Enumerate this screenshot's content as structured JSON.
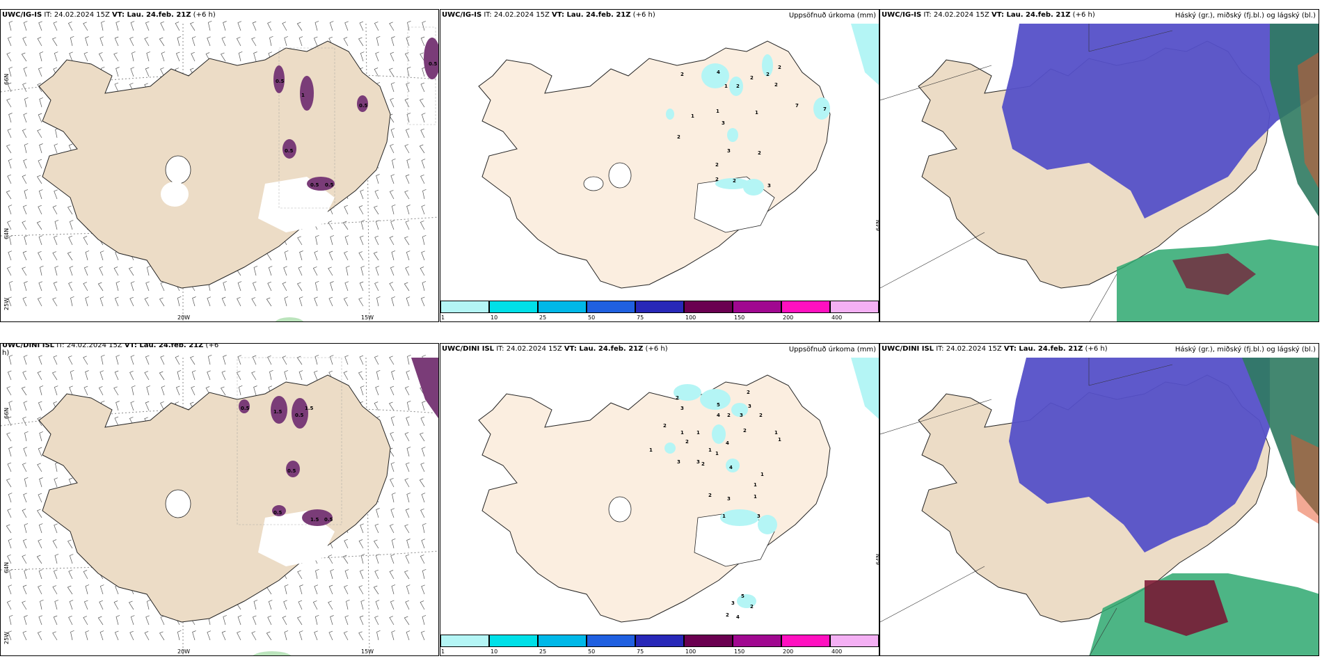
{
  "panels": {
    "top_left": {
      "model": "UWC/IG-IS",
      "it": " IT: 24.02.2024 15Z ",
      "vt": "VT: Lau. 24.feb. 21Z",
      "lead": " (+6 h)"
    },
    "top_mid": {
      "model": "UWC/IG-IS",
      "it": " IT: 24.02.2024 15Z ",
      "vt": "VT: Lau. 24.feb. 21Z",
      "lead": " (+6 h)",
      "right": "Uppsöfnuð úrkoma (mm)"
    },
    "top_right": {
      "model": "UWC/IG-IS",
      "it": " IT: 24.02.2024 15Z ",
      "vt": "VT: Lau. 24.feb. 21Z",
      "lead": " (+6 h)",
      "right": "Háský (gr.), miðský (fj.bl.) og lágský (bl.)"
    },
    "bot_left": {
      "model": "UWC/DINI ISL",
      "it": " IT: 24.02.2024 15Z ",
      "vt": "VT: Lau. 24.feb. 21Z",
      "lead": " (+6",
      "wrap": "h)"
    },
    "bot_mid": {
      "model": "UWC/DINI ISL",
      "it": " IT: 24.02.2024 15Z ",
      "vt": "VT: Lau. 24.feb. 21Z",
      "lead": " (+6 h)",
      "right": "Uppsöfnuð úrkoma (mm)"
    },
    "bot_right": {
      "model": "UWC/DINI ISL",
      "it": " IT: 24.02.2024 15Z ",
      "vt": "VT: Lau. 24.feb. 21Z",
      "lead": " (+6 h)",
      "right": "Háský (gr.), miðský (fj.bl.) og lágský (bl.)"
    }
  },
  "axis": {
    "lat66": "66N",
    "lat64": "64N",
    "lon25": "25W",
    "lon20": "20W",
    "lon15": "15W"
  },
  "colorbar": {
    "labels": [
      "1",
      "10",
      "25",
      "50",
      "75",
      "100",
      "150",
      "200",
      "400"
    ],
    "colors": [
      "#b4f5f5",
      "#00e0e8",
      "#00b8e8",
      "#2060e0",
      "#2828b8",
      "#6a0050",
      "#a00890",
      "#ff10c0",
      "#f4b0f4"
    ]
  },
  "precip_top": [
    "2",
    "4",
    "2",
    "1",
    "2",
    "2",
    "2",
    "1",
    "1",
    "1",
    "3",
    "2",
    "7",
    "7",
    "3",
    "2",
    "2",
    "2",
    "2",
    "3",
    "2"
  ],
  "precip_bot": [
    "2",
    "3",
    "5",
    "4",
    "2",
    "3",
    "2",
    "2",
    "3",
    "2",
    "1",
    "1",
    "2",
    "1",
    "1",
    "1",
    "1",
    "4",
    "1",
    "3",
    "3",
    "2",
    "4",
    "1",
    "1",
    "2",
    "2",
    "3",
    "1",
    "3",
    "5",
    "3",
    "2",
    "2",
    "4",
    "1"
  ],
  "contour_top": [
    "0.5",
    "1",
    "0.5",
    "0.5",
    "0.5",
    "0.5",
    "0.5"
  ],
  "contour_bot": [
    "0.5",
    "1.5",
    "0.5",
    "1.5",
    "0.5",
    "0.5",
    "1.5",
    "0.5"
  ],
  "colors": {
    "land": "#ecdcc6",
    "land_light": "#fbeee0",
    "snow_mask": "#ffffff",
    "purple": "#7a3c78",
    "cloud_blue": "#5550c8",
    "green": "#2ea870"
  }
}
